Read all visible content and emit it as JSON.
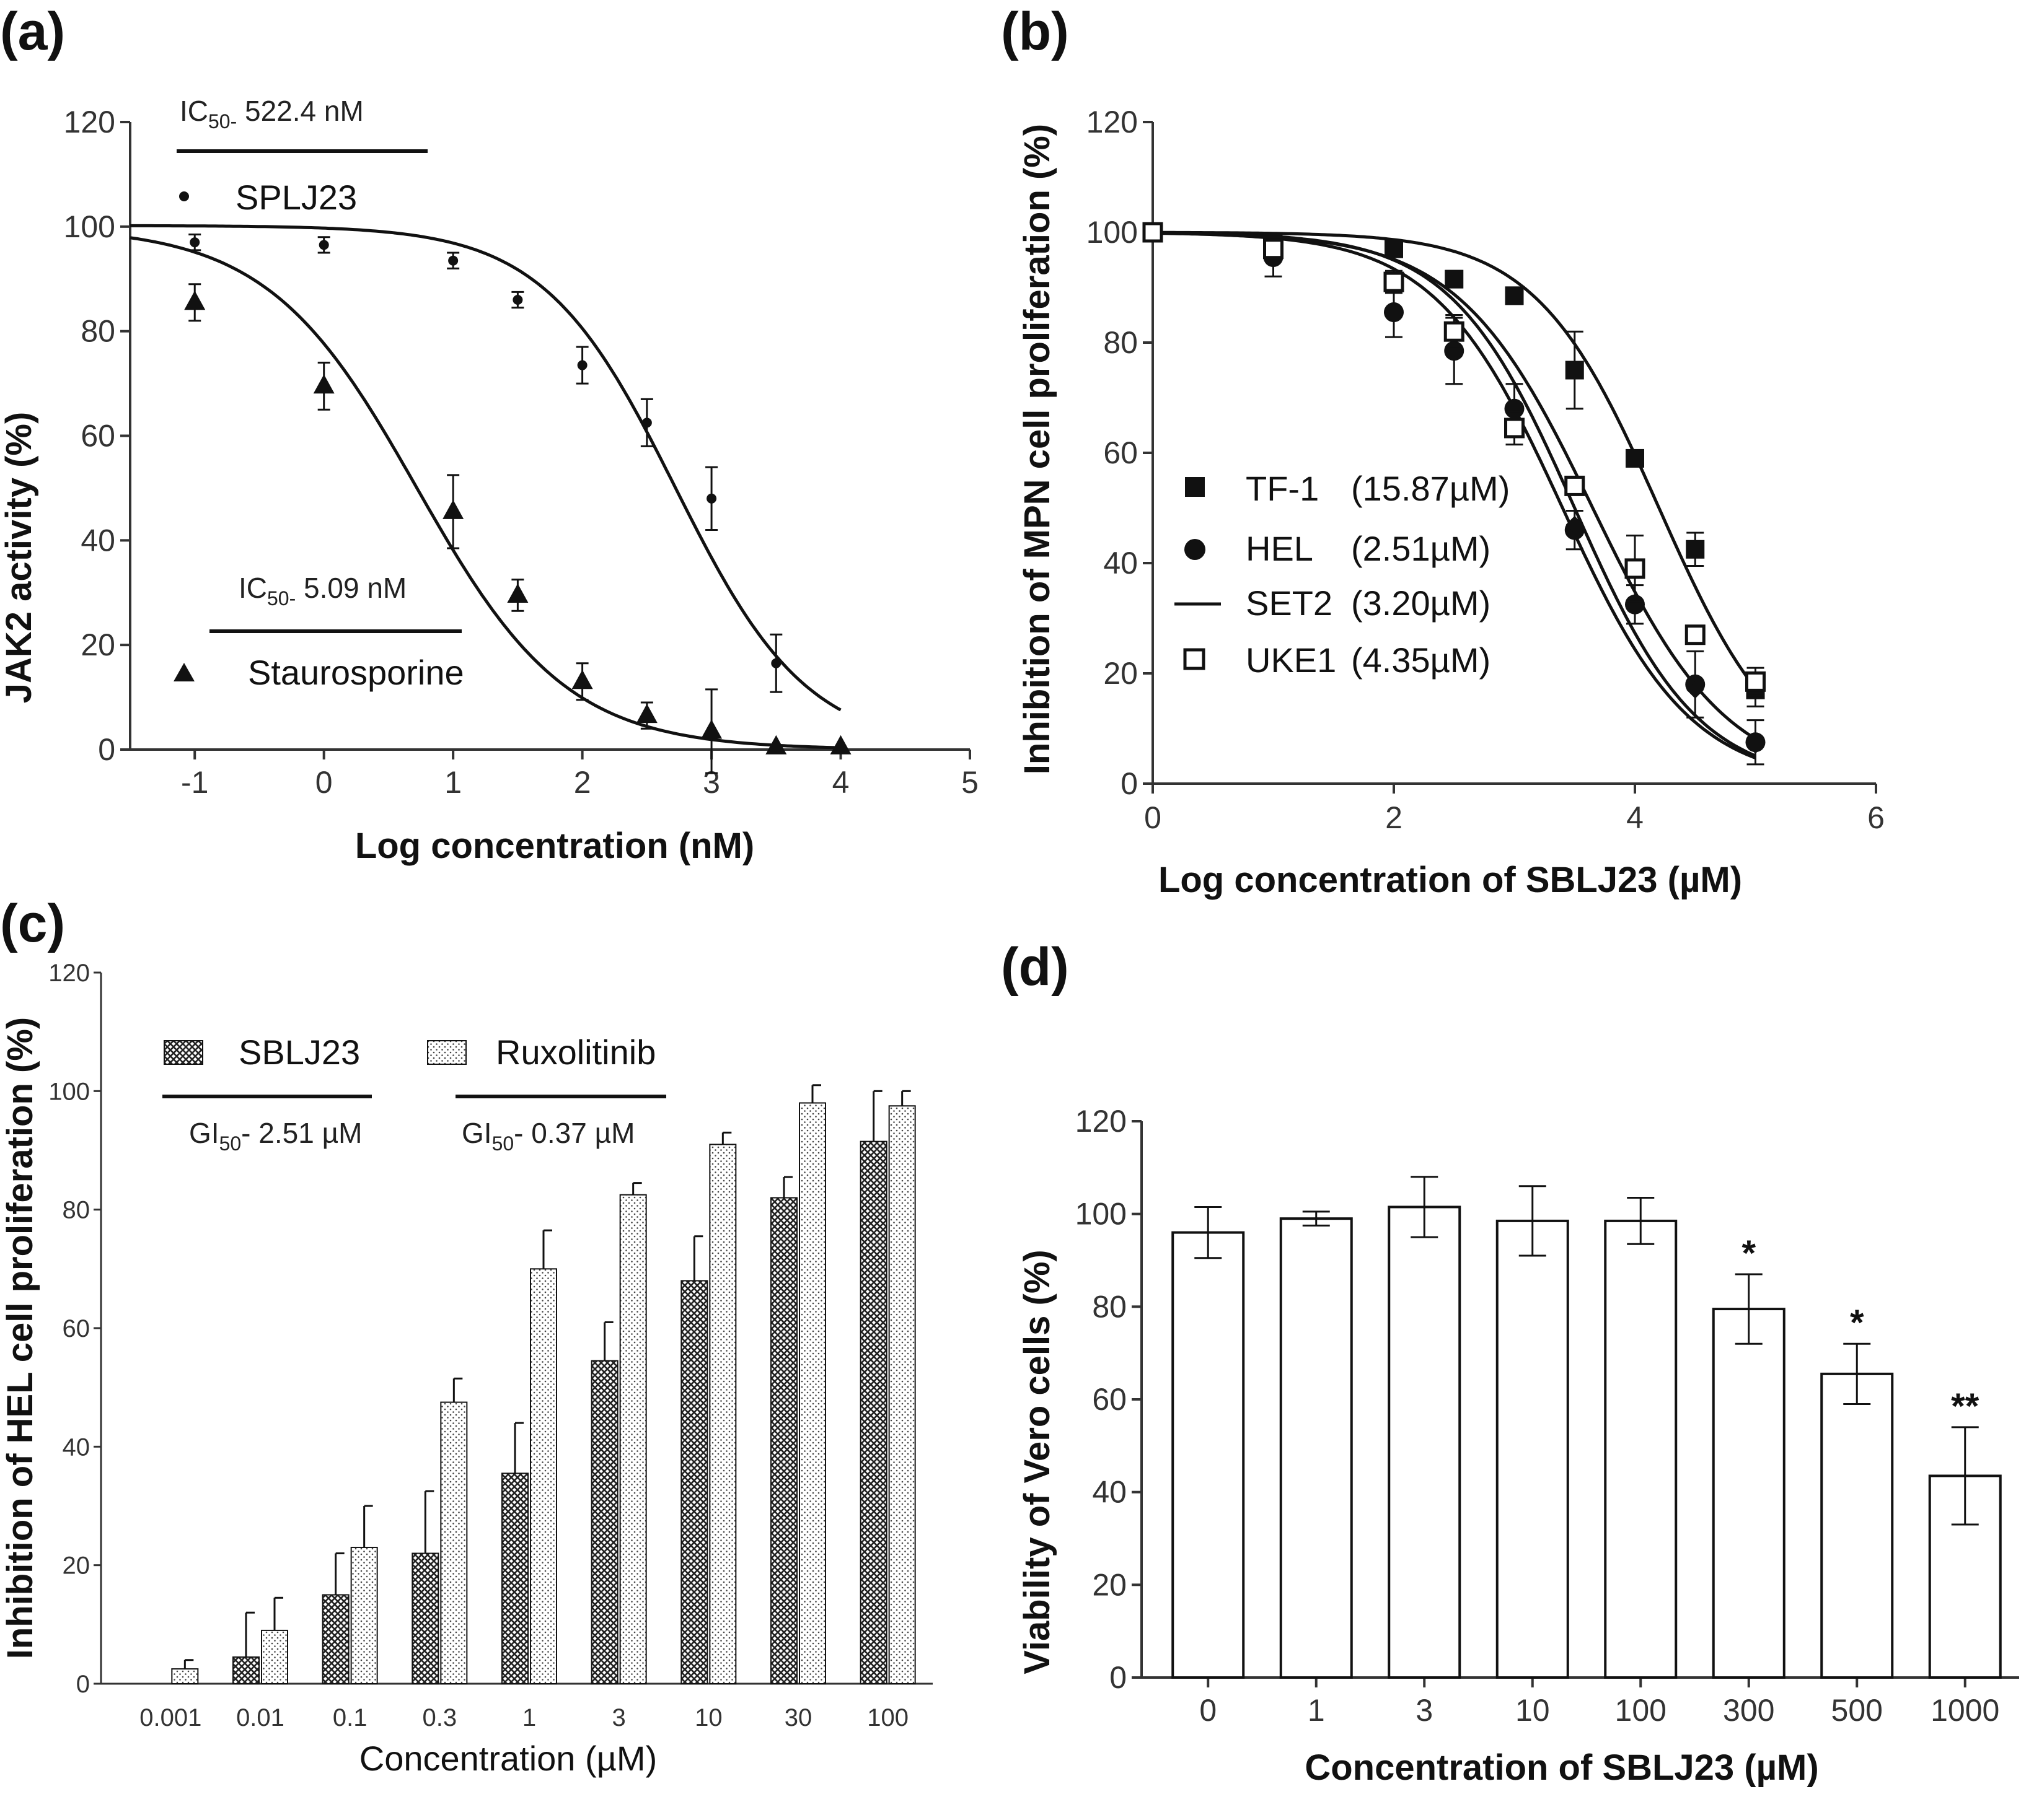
{
  "colors": {
    "ink": "#111111",
    "axis": "#333333",
    "bar_fill": "#ffffff"
  },
  "panels": {
    "a": {
      "label": "(a)"
    },
    "b": {
      "label": "(b)"
    },
    "c": {
      "label": "(c)"
    },
    "d": {
      "label": "(d)"
    }
  },
  "chart_data": [
    {
      "id": "a",
      "type": "scatter",
      "xlabel": "Log concentration (nM)",
      "ylabel": "JAK2 activity (%)",
      "xlim": [
        -1.5,
        5
      ],
      "ylim": [
        0,
        120
      ],
      "xticks": [
        "-1",
        "0",
        "1",
        "2",
        "3",
        "4",
        "5"
      ],
      "yticks": [
        "0",
        "20",
        "40",
        "60",
        "80",
        "100",
        "120"
      ],
      "annotations": [
        {
          "ic50_prefix": "IC",
          "ic50_sub": "50-",
          "ic50_value": " 522.4 nM",
          "legend": "SPLJ23"
        },
        {
          "ic50_prefix": "IC",
          "ic50_sub": "50-",
          "ic50_value": " 5.09 nM",
          "legend": "Staurosporine"
        }
      ],
      "series": [
        {
          "name": "SPLJ23",
          "marker": "dot",
          "x": [
            -1,
            0,
            1,
            1.5,
            2,
            2.5,
            3,
            3.5
          ],
          "y": [
            97,
            96.5,
            93.5,
            86,
            73.5,
            62.5,
            48,
            16.5
          ],
          "err": [
            1.5,
            1.5,
            1.5,
            1.5,
            3.5,
            4.5,
            6,
            5.5
          ],
          "fit": {
            "top": 100.2,
            "bottom": 0,
            "logIC50": 2.72,
            "hill": 0.85,
            "x_range": [
              -1.5,
              4
            ]
          }
        },
        {
          "name": "Staurosporine",
          "marker": "triangle",
          "x": [
            -1,
            0,
            1,
            1.5,
            2,
            2.5,
            3,
            3.5,
            4
          ],
          "y": [
            85.5,
            69.5,
            45.5,
            29.5,
            13,
            6.5,
            3.5,
            0.5,
            0.5
          ],
          "err": [
            3.5,
            4.5,
            7,
            3,
            3.5,
            2.5,
            8,
            0,
            0
          ],
          "fit": {
            "top": 100,
            "bottom": 0,
            "logIC50": 0.72,
            "hill": 0.75,
            "x_range": [
              -1.5,
              4
            ]
          }
        }
      ]
    },
    {
      "id": "b",
      "type": "scatter",
      "xlabel": "Log concentration of SBLJ23 (µM)",
      "ylabel": "Inhibition of MPN cell proliferation (%)",
      "xlim": [
        0,
        6
      ],
      "ylim": [
        0,
        120
      ],
      "xticks": [
        "0",
        "2",
        "4",
        "6"
      ],
      "yticks": [
        "0",
        "20",
        "40",
        "60",
        "80",
        "100",
        "120"
      ],
      "series": [
        {
          "name": "TF-1",
          "ic50": "(15.87µM)",
          "marker": "square",
          "x": [
            0,
            1,
            2,
            2.5,
            3,
            3.5,
            4,
            4.5,
            5
          ],
          "y": [
            100,
            98,
            97,
            91.5,
            88.5,
            75,
            59,
            42.5,
            17
          ],
          "err": [
            1,
            1.5,
            1.5,
            1.5,
            1.5,
            7,
            1.5,
            3,
            3
          ],
          "fit": {
            "top": 100,
            "bottom": 0,
            "logIC50": 4.2,
            "hill": 0.85
          }
        },
        {
          "name": "HEL",
          "ic50": "(2.51µM)",
          "marker": "circle",
          "x": [
            0,
            1,
            2,
            2.5,
            3,
            3.5,
            4,
            4.5,
            5
          ],
          "y": [
            100,
            95.5,
            85.5,
            78.5,
            68,
            46,
            32.5,
            18,
            7.5
          ],
          "err": [
            1,
            3.5,
            4.5,
            6,
            4.5,
            3.5,
            3.5,
            6,
            4
          ],
          "fit": {
            "top": 100,
            "bottom": 0,
            "logIC50": 3.4,
            "hill": 0.82
          }
        },
        {
          "name": "SET2",
          "ic50": "(3.20µM)",
          "marker": "line",
          "x": [
            3,
            3.5,
            4.5,
            5
          ],
          "y": [
            65,
            47,
            17,
            7
          ],
          "err": [
            0,
            0,
            0,
            0
          ],
          "fit": {
            "top": 100,
            "bottom": 0,
            "logIC50": 3.5,
            "hill": 0.85
          }
        },
        {
          "name": "UKE1",
          "ic50": "(4.35µM)",
          "marker": "open-square",
          "x": [
            0,
            1,
            2,
            2.5,
            3,
            3.5,
            4,
            4.5,
            5
          ],
          "y": [
            100,
            97,
            91,
            82,
            64.5,
            54,
            39,
            27,
            18.5
          ],
          "err": [
            1,
            2,
            2,
            3,
            3,
            1.5,
            6,
            1.5,
            2.5
          ],
          "fit": {
            "top": 100,
            "bottom": 0,
            "logIC50": 3.65,
            "hill": 0.78
          }
        }
      ]
    },
    {
      "id": "c",
      "type": "bar",
      "xlabel": "Concentration (µM)",
      "ylabel": "Inhibition of HEL cell proliferation (%)",
      "ylim": [
        0,
        120
      ],
      "yticks": [
        "0",
        "20",
        "40",
        "60",
        "80",
        "100",
        "120"
      ],
      "categories": [
        "0.001",
        "0.01",
        "0.1",
        "0.3",
        "1",
        "3",
        "10",
        "30",
        "100"
      ],
      "annotations": [
        {
          "gi50_prefix": "GI",
          "gi50_sub": "50",
          "gi50_value": "- 2.51 µM"
        },
        {
          "gi50_prefix": "GI",
          "gi50_sub": "50",
          "gi50_value": "- 0.37 µM"
        }
      ],
      "series": [
        {
          "name": "SBLJ23",
          "pattern": "crosshatch",
          "values": [
            0,
            4.5,
            15,
            22,
            35.5,
            54.5,
            68,
            82,
            91.5
          ],
          "err": [
            0,
            7.5,
            7,
            10.5,
            8.5,
            6.5,
            7.5,
            3.5,
            8.5
          ]
        },
        {
          "name": "Ruxolitinib",
          "pattern": "dots",
          "values": [
            2.5,
            9,
            23,
            47.5,
            70,
            82.5,
            91,
            98,
            97.5
          ],
          "err": [
            1.5,
            5.5,
            7,
            4,
            6.5,
            2,
            2,
            3,
            2.5
          ]
        }
      ]
    },
    {
      "id": "d",
      "type": "bar",
      "xlabel": "Concentration of SBLJ23  (µM)",
      "ylabel": "Viability  of Vero cells (%)",
      "ylim": [
        0,
        120
      ],
      "yticks": [
        "0",
        "20",
        "40",
        "60",
        "80",
        "100",
        "120"
      ],
      "categories": [
        "0",
        "1",
        "3",
        "10",
        "100",
        "300",
        "500",
        "1000"
      ],
      "values": [
        96,
        99,
        101.5,
        98.5,
        98.5,
        79.5,
        65.5,
        43.5
      ],
      "err": [
        5.5,
        1.5,
        6.5,
        7.5,
        5,
        7.5,
        6.5,
        10.5
      ],
      "significance": [
        "",
        "",
        "",
        "",
        "",
        "*",
        "*",
        "**"
      ]
    }
  ]
}
